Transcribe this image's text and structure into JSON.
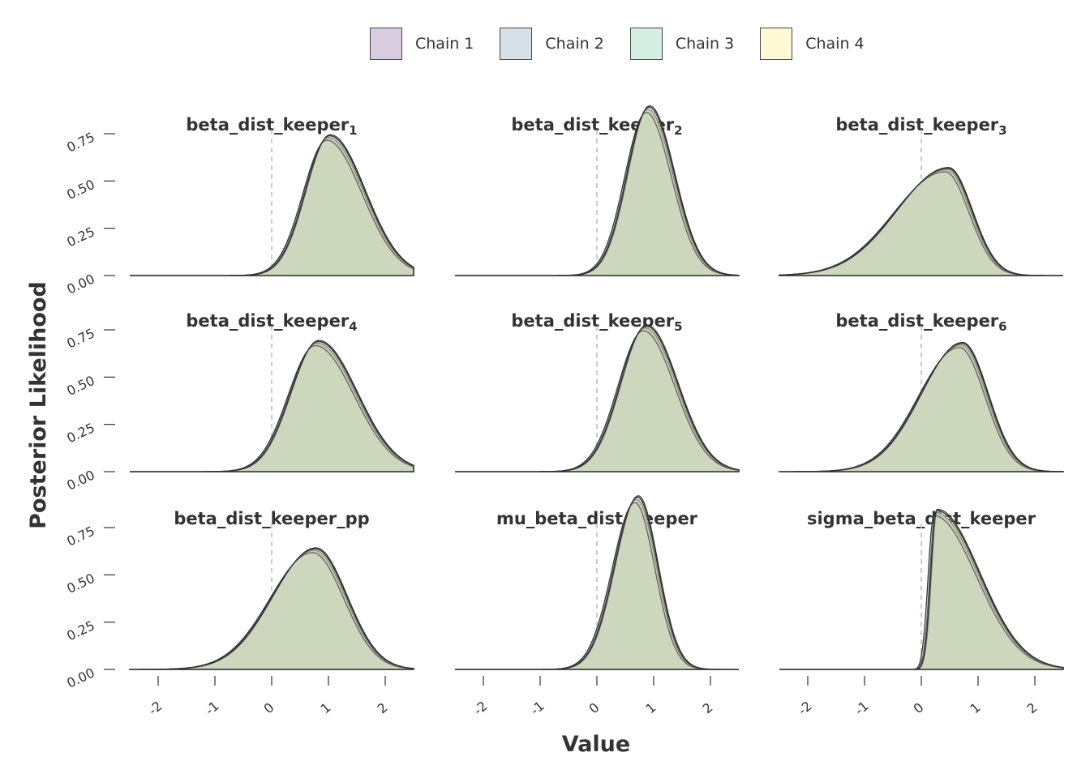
{
  "legend": {
    "items": [
      {
        "label": "Chain 1",
        "color": "#d8cce0"
      },
      {
        "label": "Chain 2",
        "color": "#d6e0e6"
      },
      {
        "label": "Chain 3",
        "color": "#d5efe2"
      },
      {
        "label": "Chain 4",
        "color": "#fff8d4"
      }
    ]
  },
  "chart_data": {
    "type": "area",
    "subtype": "density-facets",
    "xlabel": "Value",
    "ylabel": "Posterior Likelihood",
    "xlim": [
      -2.5,
      2.5
    ],
    "ylim": [
      0,
      0.9
    ],
    "x_ticks": [
      "-2",
      "-1",
      "0",
      "1",
      "2"
    ],
    "y_ticks": [
      "0.00",
      "0.25",
      "0.50",
      "0.75"
    ],
    "reference_line_x": 0,
    "grid": false,
    "legend_position": "top",
    "fill_color": "#a9b994",
    "line_color": "#333333",
    "panels": [
      {
        "title": "beta_dist_keeper",
        "subscript": "1",
        "mode": 1.0,
        "peak": 0.73,
        "sd_left": 0.42,
        "sd_right": 0.62,
        "tail": "normal"
      },
      {
        "title": "beta_dist_keeper",
        "subscript": "2",
        "mode": 0.9,
        "peak": 0.88,
        "sd_left": 0.38,
        "sd_right": 0.44,
        "tail": "normal"
      },
      {
        "title": "beta_dist_keeper",
        "subscript": "3",
        "mode": 0.45,
        "peak": 0.56,
        "sd_left": 0.9,
        "sd_right": 0.42,
        "tail": "normal"
      },
      {
        "title": "beta_dist_keeper",
        "subscript": "4",
        "mode": 0.8,
        "peak": 0.68,
        "sd_left": 0.48,
        "sd_right": 0.68,
        "tail": "normal"
      },
      {
        "title": "beta_dist_keeper",
        "subscript": "5",
        "mode": 0.85,
        "peak": 0.76,
        "sd_left": 0.45,
        "sd_right": 0.55,
        "tail": "normal"
      },
      {
        "title": "beta_dist_keeper",
        "subscript": "6",
        "mode": 0.7,
        "peak": 0.67,
        "sd_left": 0.72,
        "sd_right": 0.45,
        "tail": "normal"
      },
      {
        "title": "beta_dist_keeper_pp",
        "subscript": "",
        "mode": 0.75,
        "peak": 0.63,
        "sd_left": 0.75,
        "sd_right": 0.55,
        "tail": "normal"
      },
      {
        "title": "mu_beta_dist_keeper",
        "subscript": "",
        "mode": 0.7,
        "peak": 0.9,
        "sd_left": 0.4,
        "sd_right": 0.35,
        "tail": "normal"
      },
      {
        "title": "sigma_beta_dist_keeper",
        "subscript": "",
        "mode": 0.25,
        "peak": 0.83,
        "sd_left": 0.1,
        "sd_right": 0.75,
        "tail": "bounded"
      }
    ]
  }
}
